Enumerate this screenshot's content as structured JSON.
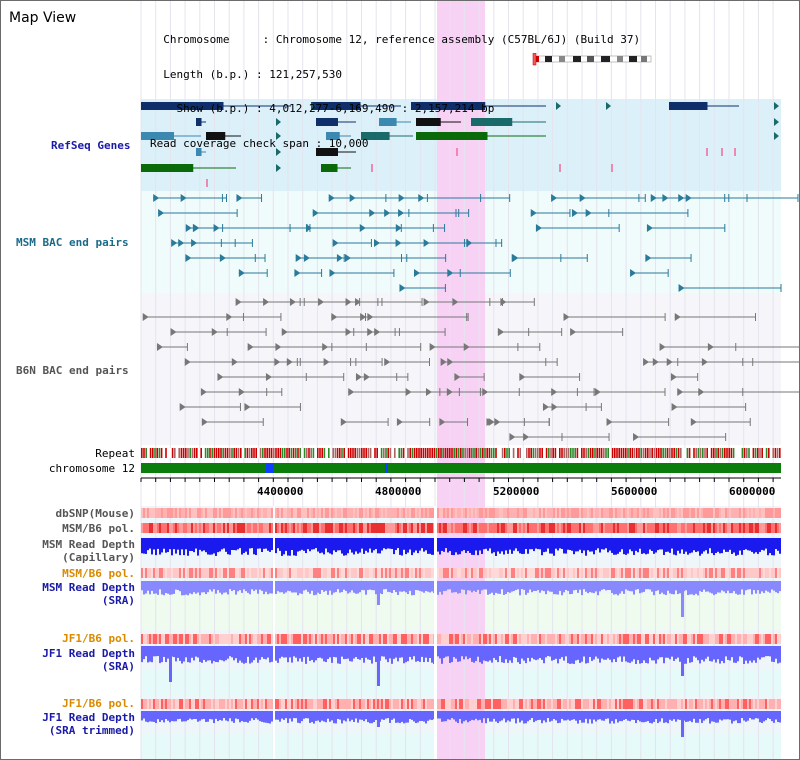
{
  "title": "Map View",
  "header": {
    "lines": [
      "  Chromosome     : Chromosome 12, reference assembly (C57BL/6J) (Build 37)",
      "  Length (b.p.) : 121,257,530",
      "    Show (b.p.) : 4,012,277-6,169,490 : 2,157,214 bp",
      "Read coverage check span : 10,000"
    ]
  },
  "tracks": {
    "refseq": "RefSeq Genes",
    "msm_bac": "MSM BAC end pairs",
    "b6n_bac": "B6N BAC end pairs",
    "repeat": "Repeat",
    "chromosome": "chromosome 12",
    "dbsnp": "dbSNP(Mouse)",
    "msm_b6_pol": "MSM/B6 pol.",
    "msm_depth_cap_1": "MSM Read Depth",
    "msm_depth_cap_2": "(Capillary)",
    "msm_b6_pol2": "MSM/B6 pol.",
    "msm_depth_sra_1": "MSM Read Depth",
    "msm_depth_sra_2": "(SRA)",
    "jf1_pol1": "JF1/B6 pol.",
    "jf1_depth_sra_1": "JF1 Read Depth",
    "jf1_depth_sra_2": "(SRA)",
    "jf1_pol2": "JF1/B6 pol.",
    "jf1_depth_trim_1": "JF1 Read Depth",
    "jf1_depth_trim_2": "(SRA trimmed)"
  },
  "ruler": {
    "ticks": [
      "4400000",
      "4800000",
      "5200000",
      "5600000",
      "6000000"
    ]
  },
  "colors": {
    "refseq_bg": "#dcf0fa",
    "refseq_label": "#1a1aa8",
    "msm_label": "#1a6a8a",
    "b6n_label": "#555555",
    "highlight": "#f7d2f5",
    "orange_label": "#d98a00",
    "blue_label": "#1a1aa8",
    "chrom_green": "#0a7d0a"
  }
}
